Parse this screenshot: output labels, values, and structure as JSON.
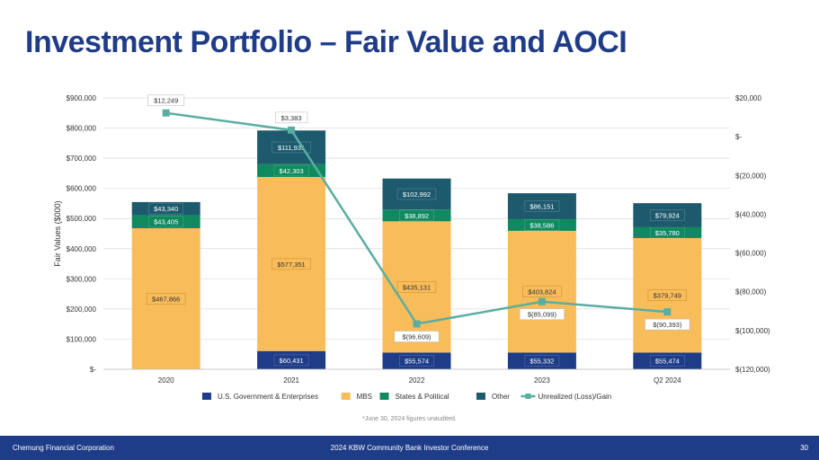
{
  "slide": {
    "title": "Investment Portfolio – Fair Value and AOCI",
    "footnote": "*June 30, 2024 figures unaudited.",
    "footer_left": "Chemung Financial Corporation",
    "footer_center": "2024 KBW Community Bank Investor Conference",
    "page_number": "30"
  },
  "chart_data": {
    "type": "bar",
    "stacked": true,
    "title": "",
    "categories": [
      "2020",
      "2021",
      "2022",
      "2023",
      "Q2 2024"
    ],
    "ylabel": "Fair Values ($000)",
    "ylim": [
      0,
      900000
    ],
    "y_ticks": [
      "$-",
      "$100,000",
      "$200,000",
      "$300,000",
      "$400,000",
      "$500,000",
      "$600,000",
      "$700,000",
      "$800,000",
      "$900,000"
    ],
    "y2lim": [
      -120000,
      20000
    ],
    "y2_ticks": [
      "$(120,000)",
      "$(100,000)",
      "$(80,000)",
      "$(60,000)",
      "$(40,000)",
      "$(20,000)",
      "$-",
      "$20,000"
    ],
    "series": [
      {
        "name": "U.S. Government & Enterprises",
        "color": "#1f3c88",
        "values": [
          0,
          60431,
          55574,
          55332,
          55474
        ],
        "labels": [
          "",
          "$60,431",
          "$55,574",
          "$55,332",
          "$55,474"
        ]
      },
      {
        "name": "MBS",
        "color": "#f9bc5a",
        "values": [
          467866,
          577351,
          435131,
          403824,
          379749
        ],
        "labels": [
          "$467,866",
          "$577,351",
          "$435,131",
          "$403,824",
          "$379,749"
        ]
      },
      {
        "name": "States & Political",
        "color": "#0f8a5f",
        "values": [
          43405,
          42303,
          38892,
          38586,
          35780
        ],
        "labels": [
          "$43,405",
          "$42,303",
          "$38,892",
          "$38,586",
          "$35,780"
        ]
      },
      {
        "name": "Other",
        "color": "#1e5a6e",
        "values": [
          43340,
          111931,
          102992,
          86151,
          79924
        ],
        "labels": [
          "$43,340",
          "$111,931",
          "$102,992",
          "$86,151",
          "$79,924"
        ]
      }
    ],
    "line_series": {
      "name": "Unrealized (Loss)/Gain",
      "color": "#5aaea0",
      "axis": "secondary",
      "values": [
        12249,
        3383,
        -96609,
        -85099,
        -90393
      ],
      "labels": [
        "$12,249",
        "$3,383",
        "$(96,609)",
        "$(85,099)",
        "$(90,393)"
      ]
    },
    "legend_position": "bottom"
  }
}
